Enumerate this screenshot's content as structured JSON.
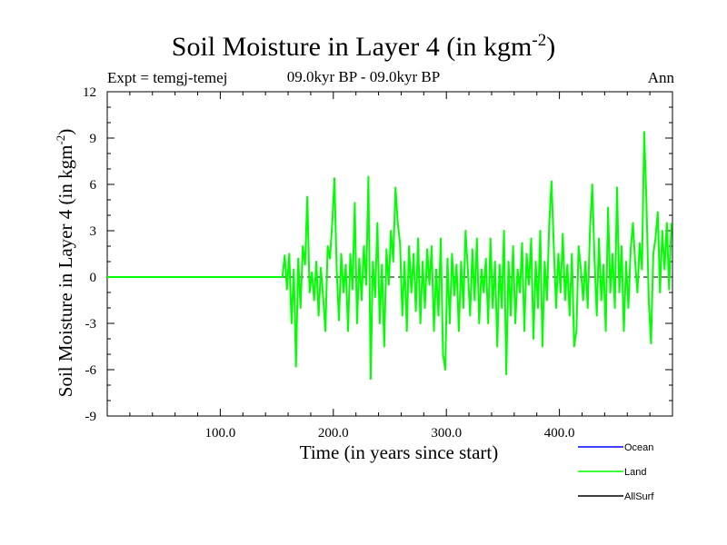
{
  "chart_data": {
    "type": "line",
    "title": "Soil Moisture in Layer 4 (in kgm",
    "title_sup": "-2",
    "title_end": ")",
    "subtitle": "09.0kyr BP - 09.0kyr BP",
    "expt_label": "Expt = temgj-temej",
    "season_label": "Ann",
    "xlabel": "Time (in years since start)",
    "ylabel": "Soil Moisture in Layer 4 (in kgm",
    "ylabel_sup": "-2",
    "ylabel_end": ")",
    "xlim": [
      0,
      500
    ],
    "ylim": [
      -9,
      12
    ],
    "x_ticks": [
      100,
      200,
      300,
      400
    ],
    "x_tick_labels": [
      "100.0",
      "200.0",
      "300.0",
      "400.0"
    ],
    "y_ticks": [
      -9,
      -6,
      -3,
      0,
      3,
      6,
      9,
      12
    ],
    "y_tick_labels": [
      "-9",
      "-6",
      "-3",
      "0",
      "3",
      "6",
      "9",
      "12"
    ],
    "zero_line": "dashed",
    "legend_position": "bottom-right",
    "series": [
      {
        "name": "Ocean",
        "color": "#0000ff",
        "x": [],
        "values": []
      },
      {
        "name": "Land",
        "color": "#00ff00",
        "x": [
          0,
          155,
          157,
          159,
          161,
          163,
          165,
          167,
          169,
          171,
          173,
          175,
          177,
          179,
          181,
          183,
          185,
          187,
          189,
          191,
          193,
          195,
          197,
          199,
          201,
          203,
          205,
          207,
          209,
          211,
          213,
          215,
          217,
          219,
          221,
          223,
          225,
          227,
          229,
          231,
          233,
          235,
          237,
          239,
          241,
          243,
          245,
          247,
          249,
          251,
          253,
          255,
          257,
          259,
          261,
          263,
          265,
          267,
          269,
          271,
          273,
          275,
          277,
          279,
          281,
          283,
          285,
          287,
          289,
          291,
          293,
          295,
          297,
          299,
          301,
          303,
          305,
          307,
          309,
          311,
          313,
          315,
          317,
          319,
          321,
          323,
          325,
          327,
          329,
          331,
          333,
          335,
          337,
          339,
          341,
          343,
          345,
          347,
          349,
          351,
          353,
          355,
          357,
          359,
          361,
          363,
          365,
          367,
          369,
          371,
          373,
          375,
          377,
          379,
          381,
          383,
          385,
          387,
          389,
          391,
          393,
          395,
          397,
          399,
          401,
          403,
          405,
          407,
          409,
          411,
          413,
          415,
          417,
          419,
          421,
          423,
          425,
          427,
          429,
          431,
          433,
          435,
          437,
          439,
          441,
          443,
          445,
          447,
          449,
          451,
          453,
          455,
          457,
          459,
          461,
          463,
          465,
          467,
          469,
          471,
          473,
          475,
          477,
          479,
          481,
          483,
          485,
          487,
          489,
          491,
          493,
          495,
          497,
          499
        ],
        "values": [
          0,
          0,
          1.4,
          -0.8,
          1.5,
          -3.0,
          0.5,
          -5.8,
          1.2,
          -2.0,
          2.0,
          0.8,
          5.2,
          -1.0,
          0.3,
          -1.5,
          1.0,
          -2.5,
          0.6,
          -1.3,
          -3.5,
          2.0,
          1.2,
          3.5,
          6.4,
          0.5,
          -2.8,
          1.5,
          -1.0,
          0.8,
          -3.5,
          1.5,
          -0.8,
          4.8,
          -3.0,
          1.2,
          -1.5,
          2.0,
          -0.5,
          6.5,
          -6.6,
          1.0,
          -1.3,
          3.5,
          -3.0,
          0.8,
          -4.5,
          1.8,
          -0.5,
          3.0,
          1.0,
          5.8,
          3.5,
          2.2,
          -2.5,
          1.0,
          -3.5,
          2.0,
          -1.0,
          1.5,
          -2.2,
          2.5,
          -3.0,
          1.0,
          -2.0,
          1.8,
          -0.5,
          2.0,
          -3.5,
          0.5,
          -2.5,
          2.5,
          -5.0,
          -6.0,
          1.2,
          -3.0,
          1.5,
          -1.2,
          0.8,
          -3.5,
          1.0,
          -2.0,
          3.0,
          0.5,
          -2.5,
          1.8,
          -1.5,
          2.5,
          -3.0,
          0.5,
          -1.0,
          1.2,
          -3.0,
          2.5,
          -2.0,
          1.0,
          -4.5,
          0.8,
          -2.0,
          3.0,
          -6.3,
          1.0,
          -2.5,
          2.0,
          -3.0,
          0.5,
          -1.0,
          2.2,
          -3.5,
          1.5,
          -0.5,
          2.5,
          -4.0,
          1.0,
          -2.0,
          3.0,
          -4.5,
          1.0,
          -1.5,
          3.5,
          6.2,
          2.0,
          -2.0,
          1.5,
          -1.0,
          2.8,
          -1.5,
          0.8,
          -2.5,
          1.5,
          -4.5,
          -3.5,
          2.0,
          0.5,
          -1.5,
          1.0,
          -2.0,
          3.0,
          6.0,
          1.2,
          -2.5,
          2.5,
          -1.5,
          0.8,
          -3.5,
          4.5,
          -1.0,
          1.5,
          -2.0,
          5.8,
          -1.0,
          2.0,
          -3.5,
          1.0,
          -2.0,
          1.8,
          3.5,
          1.0,
          -1.0,
          2.2,
          0.5,
          9.4,
          4.8,
          -1.5,
          -4.3,
          1.5,
          2.5,
          4.2,
          -1.0,
          3.0,
          0.5,
          3.5,
          -0.8,
          3.5
        ]
      },
      {
        "name": "AllSurf",
        "color": "#000000",
        "x": [],
        "values": []
      }
    ]
  }
}
